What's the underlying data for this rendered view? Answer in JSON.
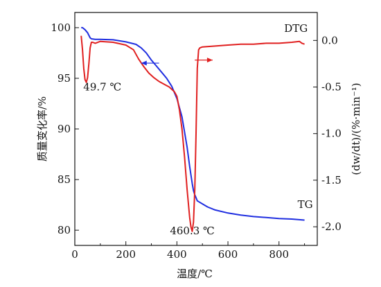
{
  "chart_data": {
    "type": "line",
    "xlabel": "温度/℃",
    "ylabel": "质量变化率/%",
    "y2label": "(dw/dt)/(%·min⁻¹)",
    "xlim": [
      0,
      950
    ],
    "ylim": [
      78.5,
      101.5
    ],
    "y2lim": [
      -2.2,
      0.3
    ],
    "xticks": [
      0,
      200,
      400,
      600,
      800
    ],
    "yticks": [
      80,
      85,
      90,
      95,
      100
    ],
    "y2ticks": [
      0.0,
      -0.5,
      -1.0,
      -1.5,
      -2.0
    ],
    "y2tick_labels": [
      "0.0",
      "-0.5",
      "-1.0",
      "-1.5",
      "-2.0"
    ],
    "series": [
      {
        "name": "TG",
        "axis": "left",
        "color": "#1f2ee0",
        "x": [
          25,
          30,
          40,
          50,
          60,
          65,
          80,
          100,
          150,
          200,
          240,
          260,
          280,
          300,
          320,
          340,
          360,
          380,
          400,
          420,
          440,
          450,
          460,
          465,
          470,
          475,
          480,
          500,
          520,
          550,
          600,
          650,
          700,
          750,
          800,
          850,
          900
        ],
        "y": [
          100.0,
          100.0,
          99.8,
          99.5,
          99.0,
          98.9,
          98.85,
          98.85,
          98.8,
          98.6,
          98.35,
          98.0,
          97.5,
          96.8,
          96.2,
          95.6,
          95.0,
          94.2,
          93.0,
          91.2,
          88.2,
          86.3,
          84.6,
          83.9,
          83.5,
          83.2,
          82.9,
          82.6,
          82.3,
          82.0,
          81.7,
          81.5,
          81.35,
          81.25,
          81.15,
          81.1,
          81.0
        ]
      },
      {
        "name": "DTG",
        "axis": "right",
        "color": "#e01f1f",
        "x": [
          25,
          30,
          35,
          40,
          45,
          50,
          55,
          60,
          65,
          70,
          80,
          100,
          150,
          200,
          230,
          250,
          270,
          290,
          310,
          330,
          350,
          370,
          390,
          400,
          410,
          420,
          430,
          440,
          450,
          455,
          460,
          465,
          470,
          475,
          480,
          485,
          490,
          500,
          550,
          600,
          650,
          700,
          750,
          800,
          850,
          880,
          890,
          900
        ],
        "y": [
          0.05,
          -0.1,
          -0.3,
          -0.42,
          -0.45,
          -0.4,
          -0.25,
          -0.08,
          -0.02,
          -0.02,
          -0.03,
          -0.01,
          -0.02,
          -0.05,
          -0.1,
          -0.2,
          -0.28,
          -0.35,
          -0.4,
          -0.44,
          -0.47,
          -0.5,
          -0.55,
          -0.6,
          -0.75,
          -0.95,
          -1.25,
          -1.6,
          -1.9,
          -2.0,
          -2.05,
          -1.95,
          -1.6,
          -1.0,
          -0.3,
          -0.1,
          -0.08,
          -0.07,
          -0.06,
          -0.05,
          -0.04,
          -0.04,
          -0.03,
          -0.03,
          -0.02,
          -0.01,
          -0.03,
          -0.04
        ]
      }
    ],
    "annotations": [
      {
        "text": "49.7 ℃",
        "x": 49.7,
        "y": 93.8,
        "axis": "left"
      },
      {
        "text": "460.3 ℃",
        "x": 460.3,
        "y": 79.6,
        "axis": "left"
      },
      {
        "text": "TG",
        "x": 900,
        "y": 82.2,
        "axis": "left"
      },
      {
        "text": "DTG",
        "x": 880,
        "y": 0.09,
        "axis": "right"
      }
    ],
    "arrows": [
      {
        "series": "TG",
        "direction": "left",
        "from_x": 330,
        "to_x": 260,
        "y": 96.5
      },
      {
        "series": "DTG",
        "direction": "right",
        "from_x": 470,
        "to_x": 540,
        "y": 96.8
      }
    ],
    "grid": false,
    "legend": "none"
  }
}
